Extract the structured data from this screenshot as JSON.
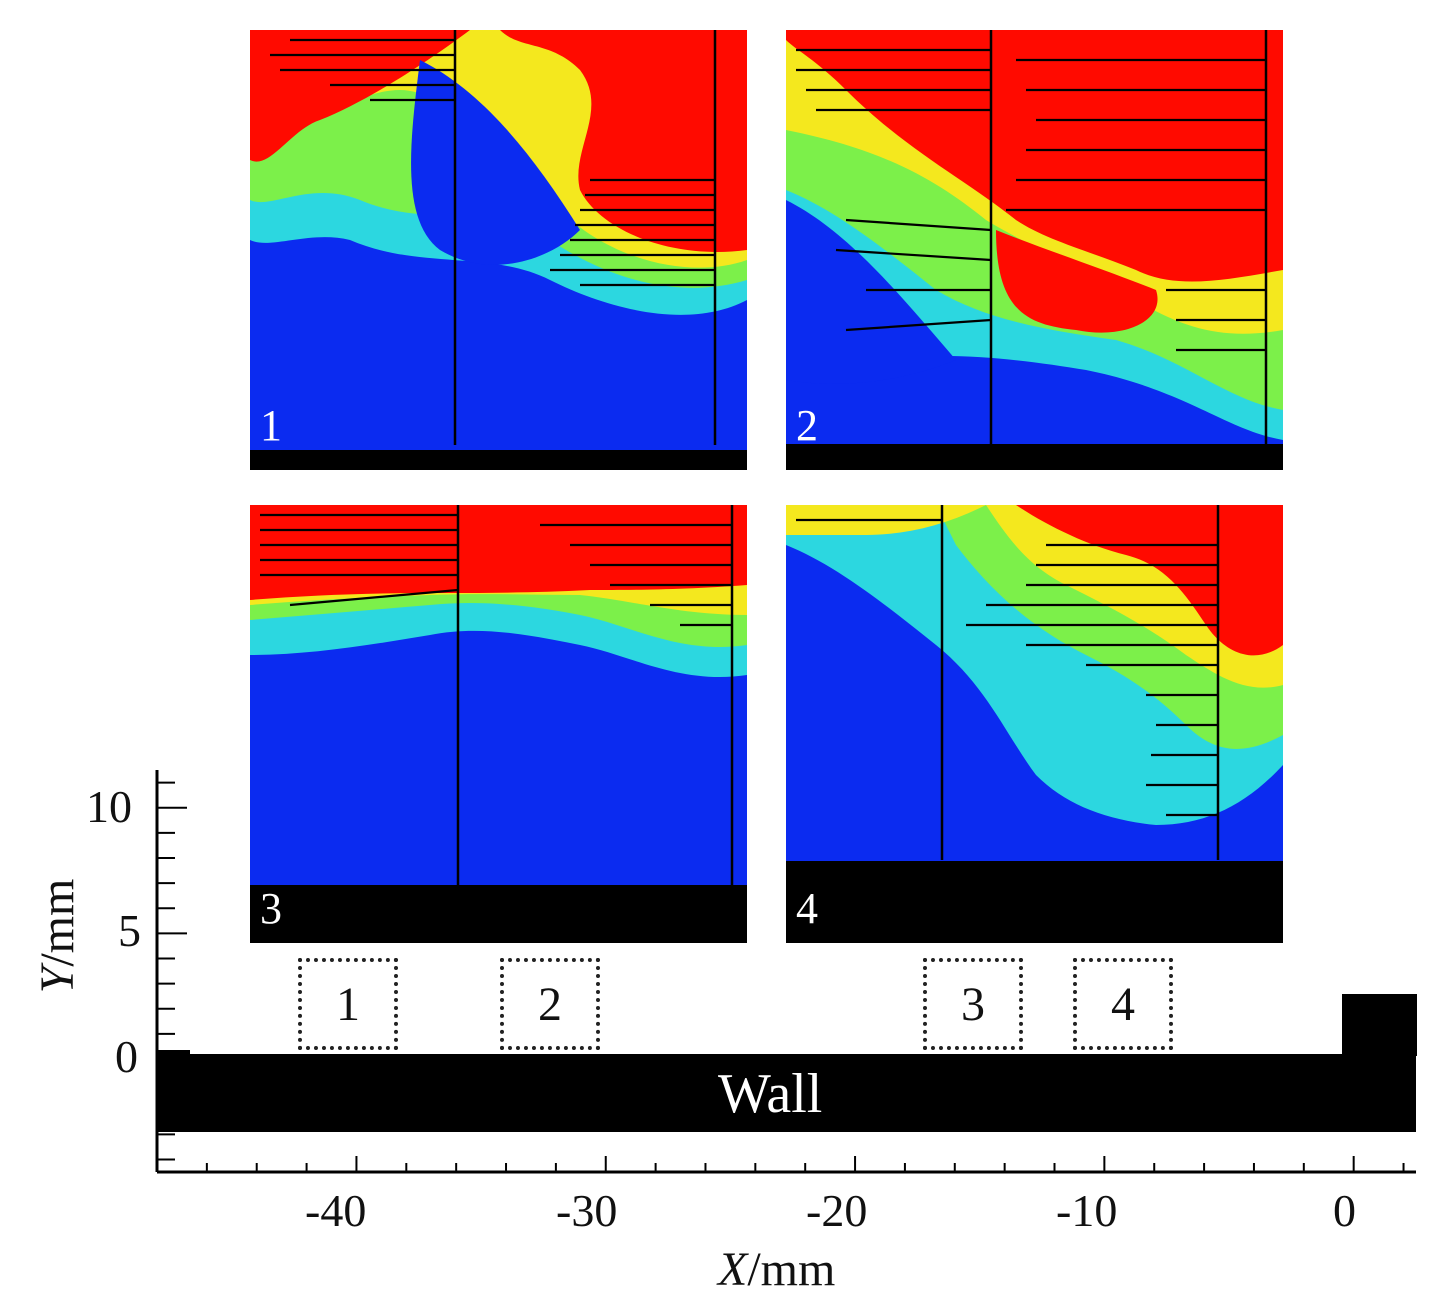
{
  "panels": [
    {
      "id": "1",
      "label": "1"
    },
    {
      "id": "2",
      "label": "2"
    },
    {
      "id": "3",
      "label": "3"
    },
    {
      "id": "4",
      "label": "4"
    }
  ],
  "locations": [
    {
      "label": "1",
      "x_range_mm": [
        -42,
        -38
      ],
      "y_range_mm": [
        0,
        4
      ]
    },
    {
      "label": "2",
      "x_range_mm": [
        -34,
        -30
      ],
      "y_range_mm": [
        0,
        4
      ]
    },
    {
      "label": "3",
      "x_range_mm": [
        -17,
        -13
      ],
      "y_range_mm": [
        0,
        4
      ]
    },
    {
      "label": "4",
      "x_range_mm": [
        -11,
        -7
      ],
      "y_range_mm": [
        0,
        4
      ]
    }
  ],
  "wall_label": "Wall",
  "x_axis": {
    "title_var": "X",
    "title_unit": "/mm",
    "ticks": [
      "-40",
      "-30",
      "-20",
      "-10",
      "0"
    ],
    "range_mm": [
      -48,
      2.5
    ]
  },
  "y_axis": {
    "title_var": "Y",
    "title_unit": "/mm",
    "ticks": [
      "0",
      "5",
      "10"
    ],
    "range_mm": [
      -4.5,
      11.5
    ]
  },
  "colors": {
    "low": "#0b2bf0",
    "mid": "#28e08a",
    "high": "#ff0a00",
    "wall": "#000000"
  }
}
